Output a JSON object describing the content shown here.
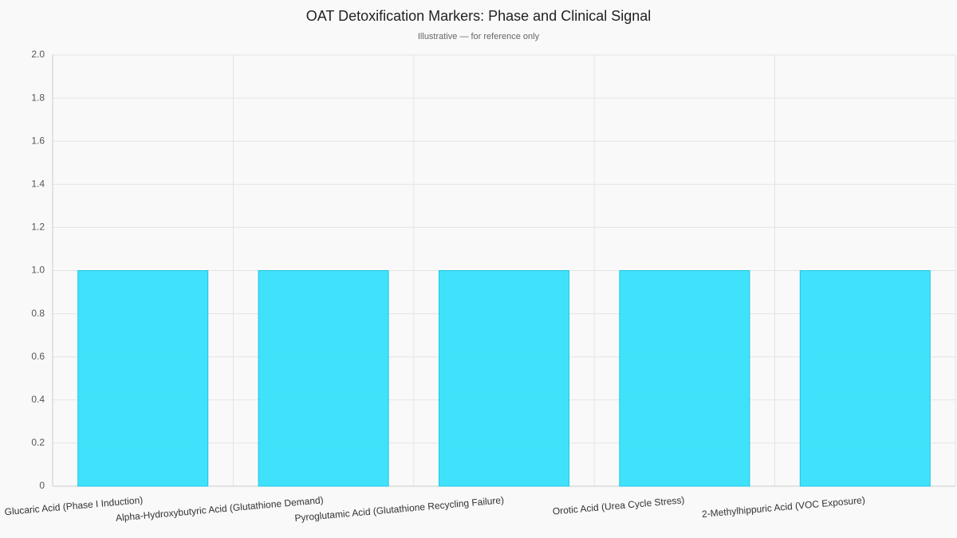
{
  "chart_data": {
    "type": "bar",
    "title": "OAT Detoxification Markers: Phase and Clinical Signal",
    "subtitle": "Illustrative — for reference only",
    "categories": [
      "Glucaric Acid (Phase I Induction)",
      "Alpha-Hydroxybutyric Acid (Glutathione Demand)",
      "Pyroglutamic Acid (Glutathione Recycling Failure)",
      "Orotic Acid (Urea Cycle Stress)",
      "2-Methylhippuric Acid (VOC Exposure)"
    ],
    "values": [
      1,
      1,
      1,
      1,
      1
    ],
    "color": "#36e0fb",
    "ylim": [
      0,
      2
    ],
    "yticks": [
      0,
      0.2,
      0.4,
      0.6,
      0.8,
      {
        "value": 1,
        "label": "1.0"
      },
      1.2,
      1.4,
      1.6,
      1.8,
      {
        "value": 2,
        "label": "2.0"
      }
    ],
    "grid": true
  }
}
